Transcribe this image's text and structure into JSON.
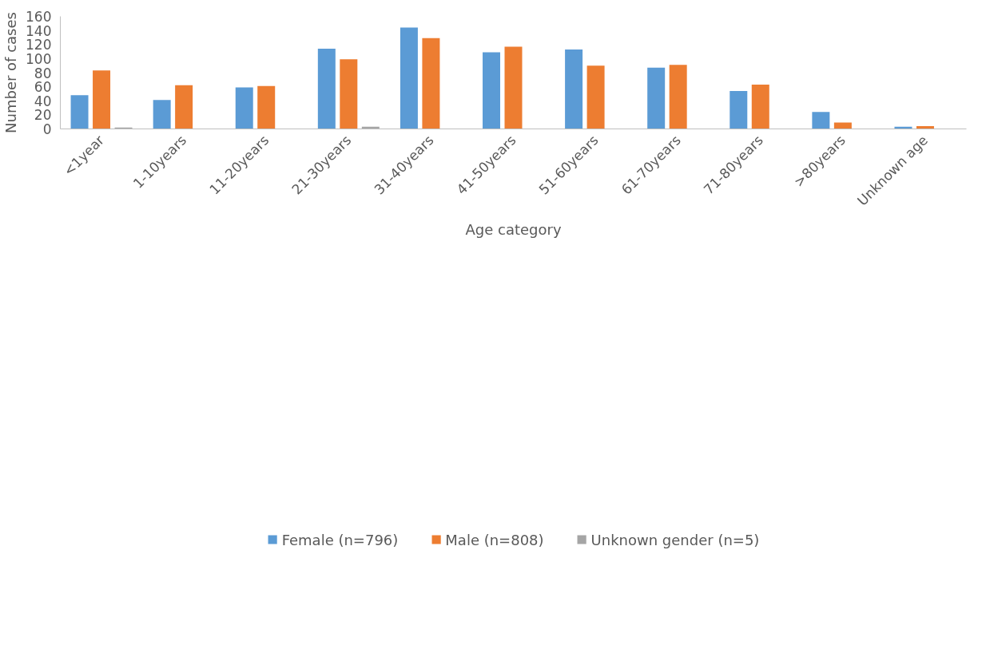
{
  "chart_data": {
    "type": "bar",
    "xlabel": "Age category",
    "ylabel": "Number of cases",
    "categories": [
      "<1year",
      "1-10years",
      "11-20years",
      "21-30years",
      "31-40years",
      "41-50years",
      "51-60years",
      "61-70years",
      "71-80years",
      ">80years",
      "Unknown age"
    ],
    "series": [
      {
        "name": "Female (n=796)",
        "color": "#5b9bd5",
        "values": [
          48,
          41,
          59,
          114,
          144,
          109,
          113,
          87,
          54,
          24,
          3
        ]
      },
      {
        "name": "Male (n=808)",
        "color": "#ed7d31",
        "values": [
          83,
          62,
          61,
          99,
          129,
          117,
          90,
          91,
          63,
          9,
          4
        ]
      },
      {
        "name": "Unknown gender (n=5)",
        "color": "#a5a5a5",
        "values": [
          2,
          0,
          0,
          3,
          0,
          0,
          0,
          0,
          0,
          0,
          0
        ]
      }
    ],
    "ylim": [
      0,
      160
    ],
    "yticks": [
      0,
      20,
      40,
      60,
      80,
      100,
      120,
      140,
      160
    ],
    "grid": false,
    "legend": "bottom"
  }
}
